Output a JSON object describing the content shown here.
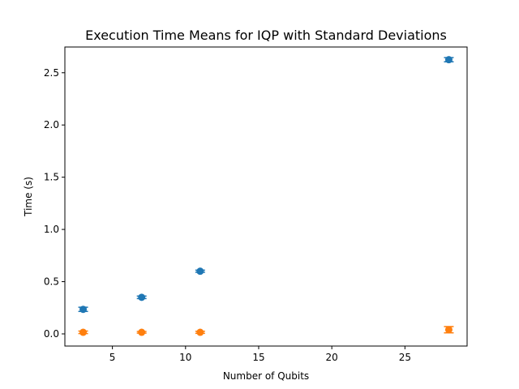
{
  "chart_data": {
    "type": "scatter",
    "title": "Execution Time Means for IQP with Standard Deviations",
    "xlabel": "Number of Qubits",
    "ylabel": "Time (s)",
    "xlim": [
      1.75,
      29.25
    ],
    "ylim": [
      -0.1165,
      2.7465
    ],
    "xticks": [
      5,
      10,
      15,
      20,
      25
    ],
    "xtick_labels": [
      "5",
      "10",
      "15",
      "20",
      "25"
    ],
    "yticks": [
      0.0,
      0.5,
      1.0,
      1.5,
      2.0,
      2.5
    ],
    "ytick_labels": [
      "0.0",
      "0.5",
      "1.0",
      "1.5",
      "2.0",
      "2.5"
    ],
    "grid": false,
    "series": [
      {
        "color": "#1f77b4",
        "points": [
          {
            "x": 3,
            "y": 0.235,
            "err": 0.02
          },
          {
            "x": 7,
            "y": 0.35,
            "err": 0.012
          },
          {
            "x": 11,
            "y": 0.6,
            "err": 0.01
          },
          {
            "x": 28,
            "y": 2.625,
            "err": 0.02
          }
        ]
      },
      {
        "color": "#ff7f0e",
        "points": [
          {
            "x": 3,
            "y": 0.015,
            "err": 0.012
          },
          {
            "x": 7,
            "y": 0.015,
            "err": 0.008
          },
          {
            "x": 11,
            "y": 0.015,
            "err": 0.01
          },
          {
            "x": 28,
            "y": 0.04,
            "err": 0.03
          }
        ]
      }
    ]
  }
}
